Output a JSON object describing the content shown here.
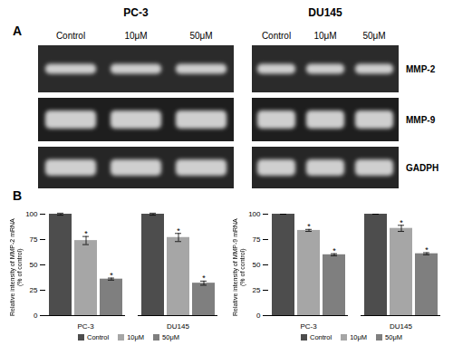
{
  "panel_labels": [
    "A",
    "B"
  ],
  "gel": {
    "cell_lines": [
      "PC-3",
      "DU145"
    ],
    "lanes": [
      "Control",
      "10μM",
      "50μM"
    ],
    "genes": [
      "MMP-2",
      "MMP-9",
      "GADPH"
    ]
  },
  "chart_data": [
    {
      "type": "bar",
      "ylabel": "Relative intensity of MMP-2 mRNA (% of control)",
      "categories": [
        "PC-3",
        "DU145"
      ],
      "ylim": [
        0,
        100
      ],
      "yticks": [
        0,
        25,
        50,
        75,
        100
      ],
      "grid": false,
      "legend": "bottom",
      "series": [
        {
          "name": "Control",
          "color": "#4d4d4d",
          "values": [
            100,
            100
          ],
          "errors": [
            1,
            1
          ]
        },
        {
          "name": "10μM",
          "color": "#a6a6a6",
          "values": [
            74,
            77
          ],
          "errors": [
            4,
            4
          ],
          "annotations": [
            "*",
            "*"
          ]
        },
        {
          "name": "50μM",
          "color": "#7f7f7f",
          "values": [
            36,
            32
          ],
          "errors": [
            1,
            2
          ],
          "annotations": [
            "*",
            "*"
          ]
        }
      ]
    },
    {
      "type": "bar",
      "ylabel": "Relative intensity of MMP-9 mRNA (% of control)",
      "categories": [
        "PC-3",
        "DU145"
      ],
      "ylim": [
        0,
        100
      ],
      "yticks": [
        0,
        25,
        50,
        75,
        100
      ],
      "grid": false,
      "legend": "bottom",
      "series": [
        {
          "name": "Control",
          "color": "#4d4d4d",
          "values": [
            100,
            100
          ],
          "errors": [
            0,
            0
          ]
        },
        {
          "name": "10μM",
          "color": "#a6a6a6",
          "values": [
            84,
            86
          ],
          "errors": [
            1,
            3
          ],
          "annotations": [
            "*",
            "*"
          ]
        },
        {
          "name": "50μM",
          "color": "#7f7f7f",
          "values": [
            60,
            61
          ],
          "errors": [
            1,
            1
          ],
          "annotations": [
            "*",
            "*"
          ]
        }
      ]
    }
  ]
}
